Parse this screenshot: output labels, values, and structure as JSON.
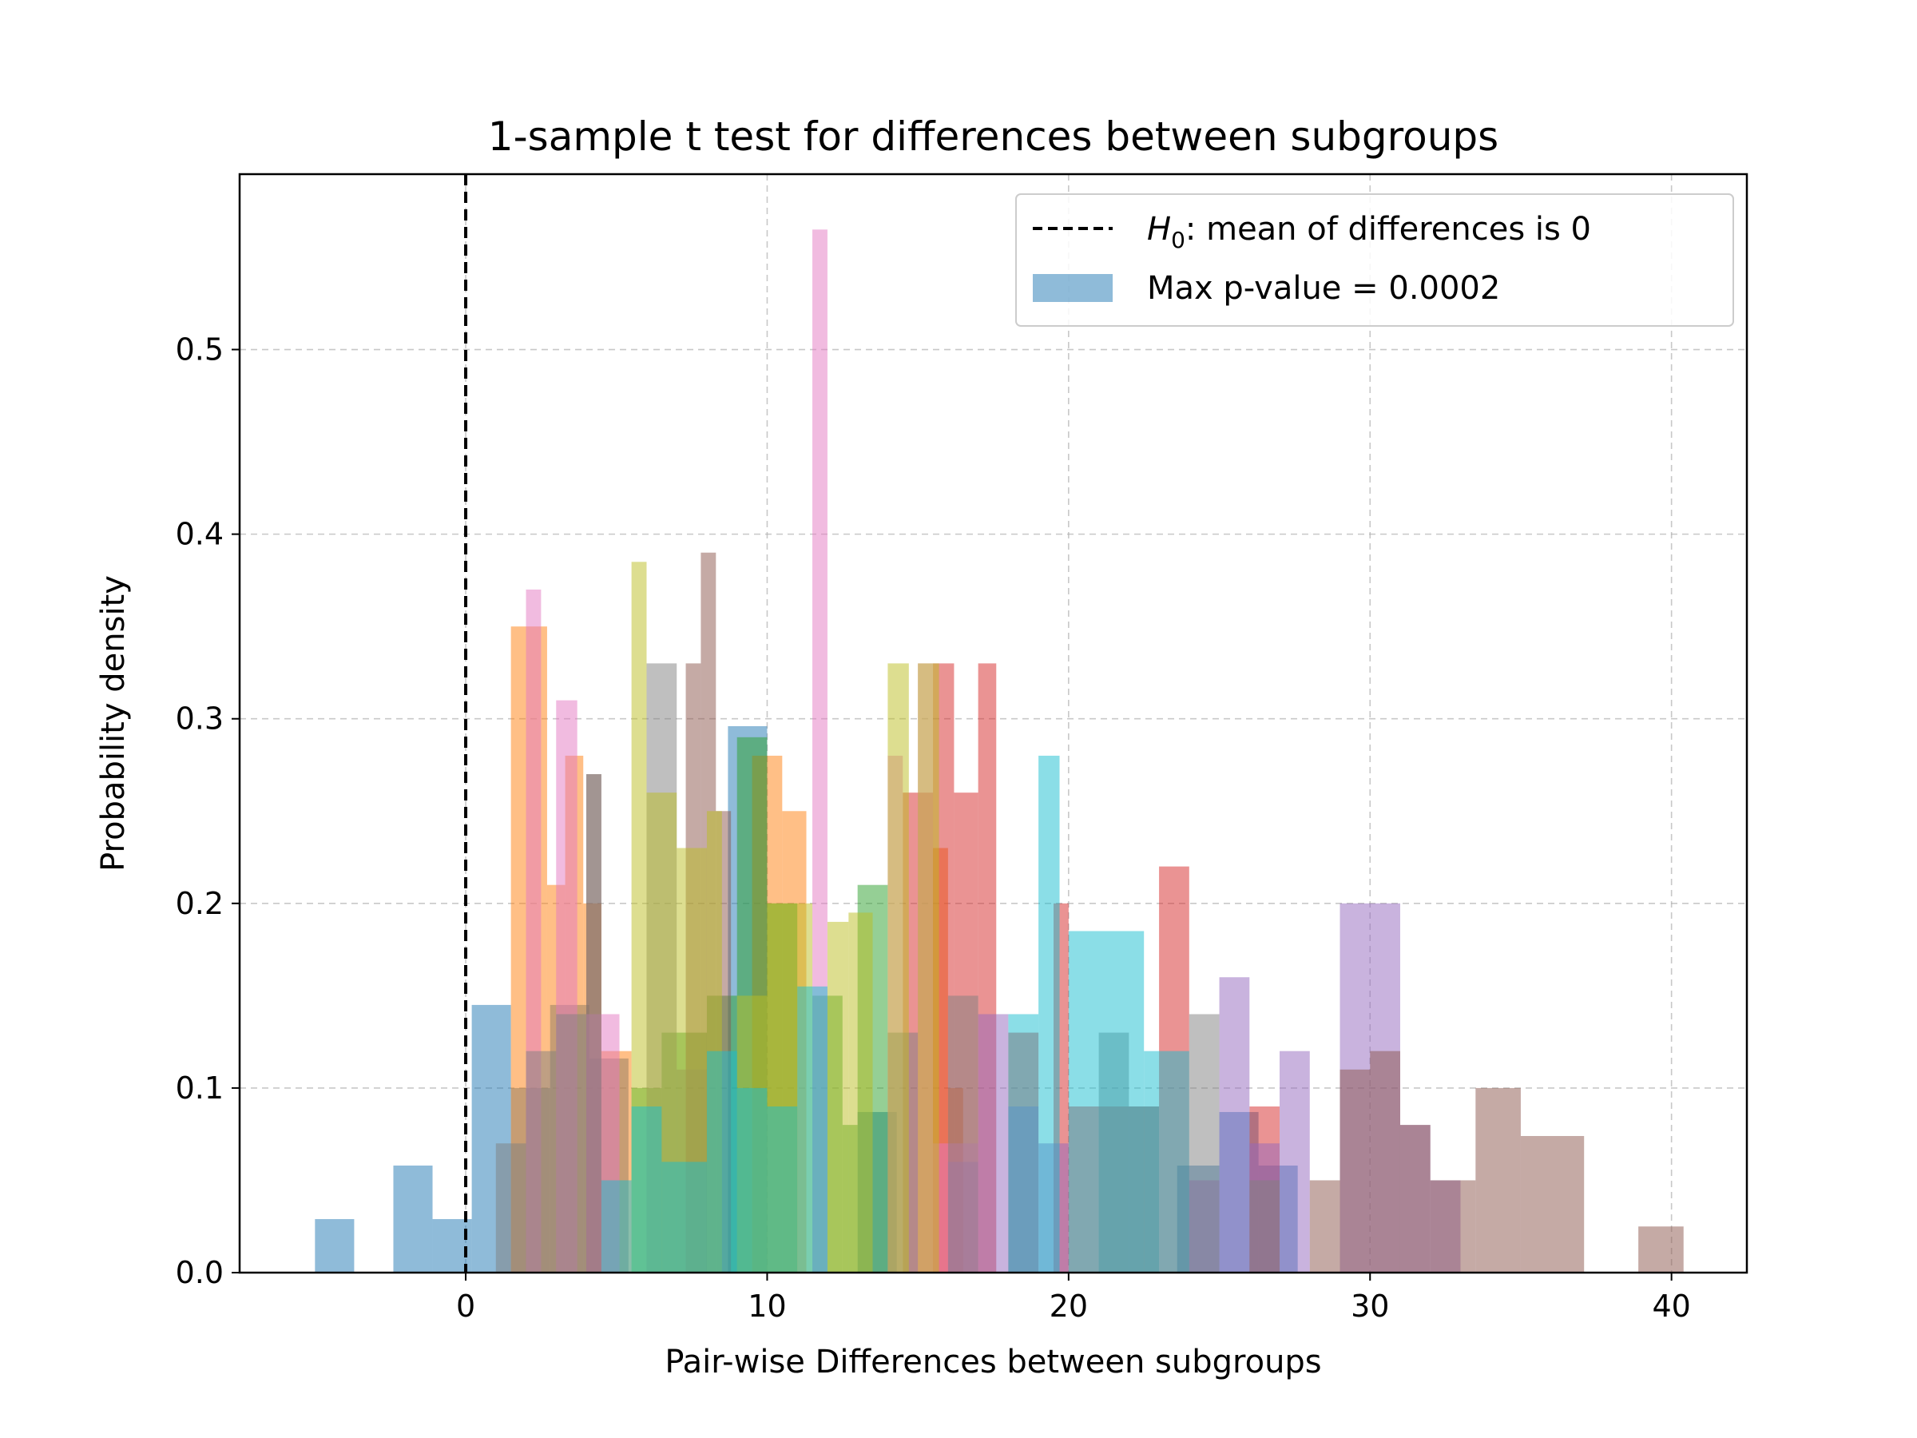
{
  "chart_data": {
    "type": "bar",
    "title": "1-sample t test for differences between subgroups",
    "xlabel": "Pair-wise Differences between subgroups",
    "ylabel": "Probability density",
    "xlim": [
      -7.5,
      42.5
    ],
    "ylim": [
      0,
      0.595
    ],
    "xticks": [
      0,
      10,
      20,
      30,
      40
    ],
    "yticks": [
      0.0,
      0.1,
      0.2,
      0.3,
      0.4,
      0.5
    ],
    "xtick_labels": [
      "0",
      "10",
      "20",
      "30",
      "40"
    ],
    "ytick_labels": [
      "0.0",
      "0.1",
      "0.2",
      "0.3",
      "0.4",
      "0.5"
    ],
    "grid": true,
    "legend_position": "top-right",
    "reference_line": {
      "x": 0,
      "style": "dashed",
      "color": "#000000"
    },
    "legend": {
      "line_label_italic": "H",
      "line_label_sub": "0",
      "line_label_rest": ": mean of differences is 0",
      "patch_label": "Max p-value = 0.0002"
    },
    "series": [
      {
        "color": "#1f77b4",
        "bins": [
          [
            -5,
            -3.7,
            0.029
          ],
          [
            -2.4,
            -1.1,
            0.058
          ],
          [
            -1.1,
            0.2,
            0.029
          ],
          [
            0.2,
            1.5,
            0.145
          ],
          [
            1.5,
            2.8,
            0.1
          ],
          [
            2.8,
            4.1,
            0.145
          ],
          [
            4.1,
            5.4,
            0.116
          ],
          [
            8.7,
            10,
            0.296
          ],
          [
            13,
            14.3,
            0.087
          ],
          [
            23.6,
            25,
            0.058
          ],
          [
            25,
            26.3,
            0.087
          ],
          [
            26.3,
            27.6,
            0.058
          ]
        ]
      },
      {
        "color": "#ff7f0e",
        "bins": [
          [
            1.5,
            2.7,
            0.35
          ],
          [
            2.7,
            3.3,
            0.21
          ],
          [
            3.3,
            3.9,
            0.28
          ],
          [
            3.9,
            4.5,
            0.2
          ],
          [
            4.5,
            5.5,
            0.12
          ],
          [
            9.5,
            10.5,
            0.28
          ],
          [
            10.5,
            11.3,
            0.25
          ],
          [
            15.5,
            16,
            0.23
          ],
          [
            16,
            16.5,
            0.1
          ]
        ]
      },
      {
        "color": "#2ca02c",
        "bins": [
          [
            5.5,
            6.5,
            0.1
          ],
          [
            6.5,
            8,
            0.13
          ],
          [
            8,
            9,
            0.15
          ],
          [
            9,
            10,
            0.29
          ],
          [
            10,
            11,
            0.2
          ],
          [
            11.5,
            12.5,
            0.15
          ],
          [
            12.5,
            13,
            0.08
          ],
          [
            13,
            14,
            0.21
          ]
        ]
      },
      {
        "color": "#d62728",
        "bins": [
          [
            14.5,
            15.5,
            0.26
          ],
          [
            15.5,
            16.2,
            0.33
          ],
          [
            16.2,
            17,
            0.26
          ],
          [
            17,
            17.6,
            0.33
          ],
          [
            18,
            19,
            0.13
          ],
          [
            19.5,
            20,
            0.2
          ],
          [
            20,
            22,
            0.09
          ],
          [
            22,
            23,
            0.09
          ],
          [
            23,
            24,
            0.22
          ],
          [
            26,
            27,
            0.09
          ]
        ]
      },
      {
        "color": "#9467bd",
        "bins": [
          [
            16,
            17,
            0.06
          ],
          [
            17,
            18,
            0.14
          ],
          [
            18,
            19,
            0.09
          ],
          [
            19,
            20,
            0.07
          ],
          [
            24,
            25,
            0.05
          ],
          [
            25,
            26,
            0.16
          ],
          [
            26,
            27,
            0.07
          ],
          [
            27,
            28,
            0.12
          ],
          [
            29,
            31,
            0.2
          ],
          [
            31,
            32,
            0.08
          ],
          [
            32,
            33,
            0.05
          ]
        ]
      },
      {
        "color": "#8c564b",
        "bins": [
          [
            4,
            4.5,
            0.27
          ],
          [
            7.3,
            7.8,
            0.33
          ],
          [
            7.8,
            8.3,
            0.39
          ],
          [
            8.3,
            8.8,
            0.25
          ],
          [
            28,
            29,
            0.05
          ],
          [
            29,
            30,
            0.11
          ],
          [
            30,
            31,
            0.12
          ],
          [
            31,
            32,
            0.08
          ],
          [
            32,
            33.5,
            0.05
          ],
          [
            33.5,
            35,
            0.1
          ],
          [
            35,
            37.1,
            0.074
          ],
          [
            38.9,
            40.4,
            0.025
          ]
        ]
      },
      {
        "color": "#e377c2",
        "bins": [
          [
            2,
            2.5,
            0.37
          ],
          [
            3,
            3.7,
            0.31
          ],
          [
            4,
            5.1,
            0.14
          ],
          [
            11.5,
            12,
            0.565
          ],
          [
            14,
            14.5,
            0.28
          ],
          [
            15,
            15.5,
            0.33
          ],
          [
            15.5,
            17,
            0.07
          ]
        ]
      },
      {
        "color": "#7f7f7f",
        "bins": [
          [
            1,
            2,
            0.07
          ],
          [
            2,
            3,
            0.12
          ],
          [
            3,
            4,
            0.14
          ],
          [
            4,
            4.5,
            0.27
          ],
          [
            6,
            7,
            0.33
          ],
          [
            7,
            8,
            0.11
          ],
          [
            14,
            15,
            0.13
          ],
          [
            16,
            17,
            0.15
          ],
          [
            21,
            22,
            0.13
          ],
          [
            22,
            23,
            0.09
          ],
          [
            24,
            25,
            0.14
          ],
          [
            26,
            27,
            0.05
          ]
        ]
      },
      {
        "color": "#bcbd22",
        "bins": [
          [
            5.5,
            6,
            0.385
          ],
          [
            6,
            7,
            0.26
          ],
          [
            7,
            8,
            0.23
          ],
          [
            8,
            8.5,
            0.25
          ],
          [
            9,
            10,
            0.15
          ],
          [
            10,
            11.5,
            0.2
          ],
          [
            12,
            12.7,
            0.19
          ],
          [
            12.7,
            13.5,
            0.195
          ],
          [
            14,
            14.7,
            0.33
          ],
          [
            15,
            15.7,
            0.33
          ]
        ]
      },
      {
        "color": "#17becf",
        "bins": [
          [
            4.5,
            5.5,
            0.05
          ],
          [
            5.5,
            6.5,
            0.09
          ],
          [
            6.5,
            8,
            0.06
          ],
          [
            8,
            9,
            0.12
          ],
          [
            9,
            10,
            0.1
          ],
          [
            10,
            11,
            0.09
          ],
          [
            11,
            12,
            0.155
          ],
          [
            18,
            19,
            0.14
          ],
          [
            19,
            19.7,
            0.28
          ],
          [
            20,
            22.5,
            0.185
          ],
          [
            22.5,
            24,
            0.12
          ]
        ]
      }
    ]
  }
}
